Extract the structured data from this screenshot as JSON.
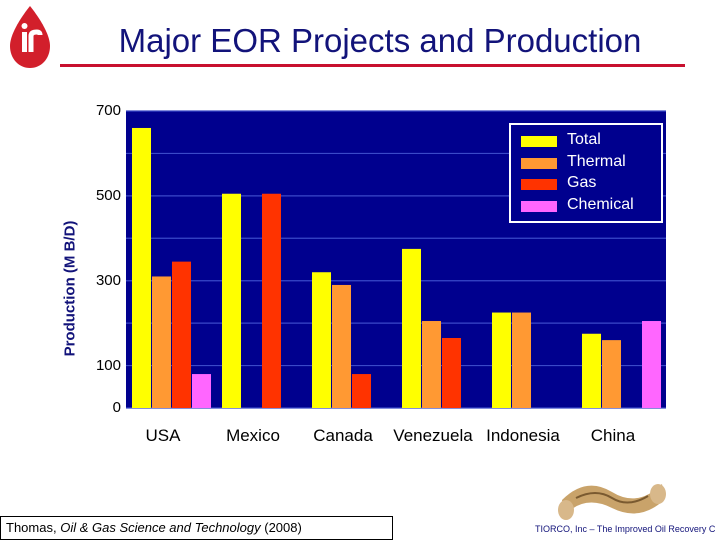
{
  "header": {
    "title": "Major EOR Projects and Production"
  },
  "citation": {
    "author": "Thomas,",
    "journal": "Oil & Gas Science and Technology",
    "year": "(2008)"
  },
  "footer": {
    "text": "TIORCO, Inc – The Improved Oil Recovery C"
  },
  "colors": {
    "plot_bg": "#00008e",
    "grid": "#3a49c8",
    "title": "#12137a",
    "rule": "#c8102e"
  },
  "icons": [
    "tiorco-logo-drop",
    "twisted-rope-image"
  ],
  "chart_data": {
    "type": "bar",
    "ylabel": "Production (M B/D)",
    "xlabel": "",
    "categories": [
      "USA",
      "Mexico",
      "Canada",
      "Venezuela",
      "Indonesia",
      "China"
    ],
    "series": [
      {
        "name": "Total",
        "color": "#ffff00",
        "values": [
          660,
          505,
          320,
          375,
          225,
          175
        ]
      },
      {
        "name": "Thermal",
        "color": "#ff9933",
        "values": [
          310,
          0,
          290,
          205,
          225,
          160
        ]
      },
      {
        "name": "Gas",
        "color": "#ff3300",
        "values": [
          345,
          505,
          80,
          165,
          0,
          0
        ]
      },
      {
        "name": "Chemical",
        "color": "#ff66ff",
        "values": [
          80,
          0,
          0,
          0,
          0,
          205
        ]
      }
    ],
    "yticks": [
      0,
      100,
      300,
      500,
      700
    ],
    "ylim": [
      0,
      700
    ],
    "grid": true,
    "legend_position": "top-right"
  }
}
